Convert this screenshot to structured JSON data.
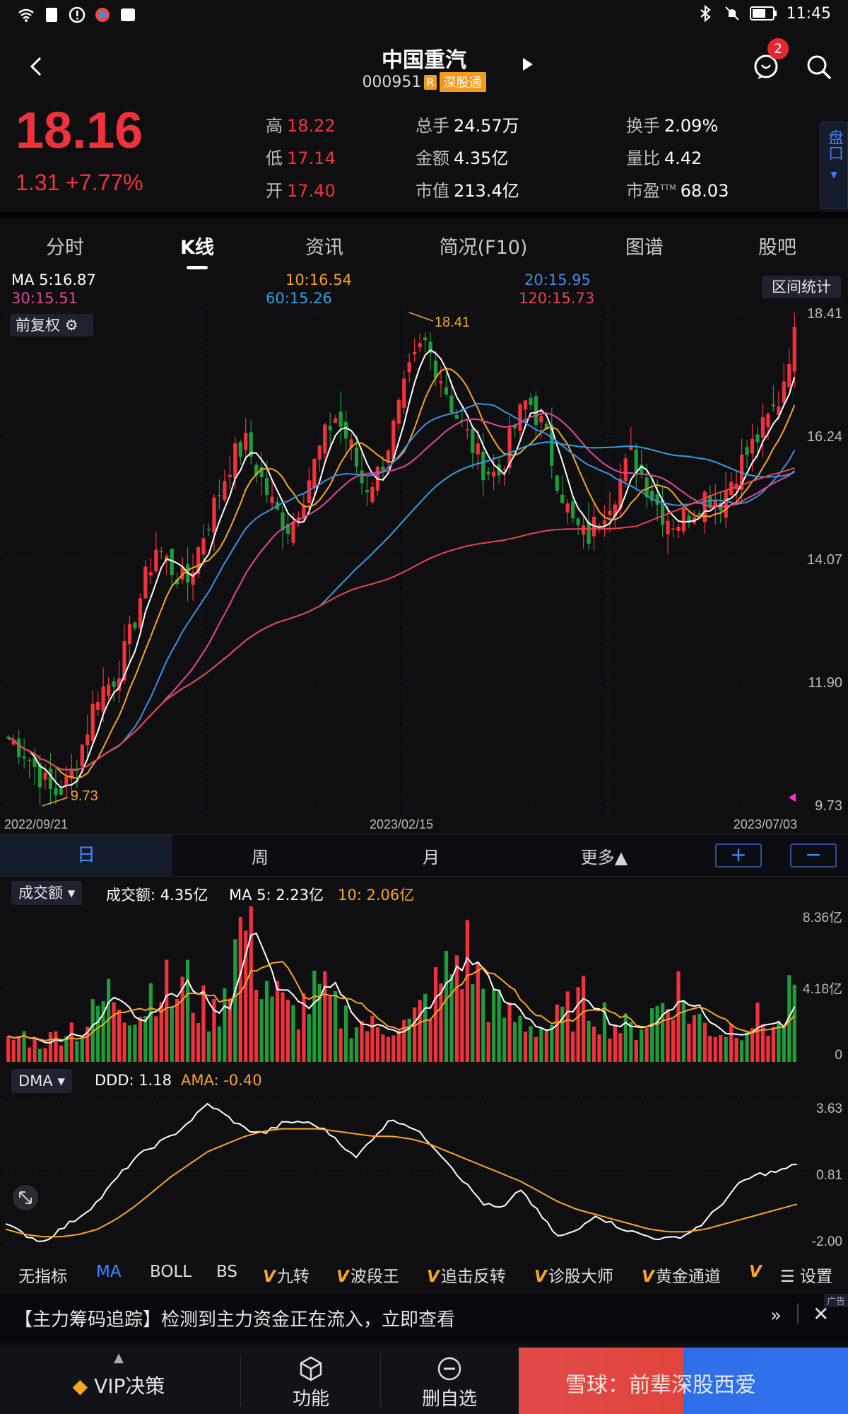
{
  "status_bar": {
    "time": "11:45"
  },
  "header": {
    "name": "中国重汽",
    "code": "000951",
    "tag_r": "R",
    "tag_market": "深股通",
    "notif_count": "2"
  },
  "quote": {
    "price": "18.16",
    "change": "1.31 +7.77%",
    "high_label": "高",
    "high": "18.22",
    "low_label": "低",
    "low": "17.14",
    "open_label": "开",
    "open": "17.40",
    "vol_label": "总手",
    "vol": "24.57万",
    "amount_label": "金额",
    "amount": "4.35亿",
    "mcap_label": "市值",
    "mcap": "213.4亿",
    "turnover_label": "换手",
    "turnover": "2.09%",
    "vol_ratio_label": "量比",
    "vol_ratio": "4.42",
    "pe_label": "市盈",
    "pe_sup": "TTM",
    "pe": "68.03",
    "pankou": "盘口"
  },
  "tabs": [
    "分时",
    "K线",
    "资讯",
    "简况(F10)",
    "图谱",
    "股吧"
  ],
  "ma_header": {
    "ma5": "MA  5:16.87",
    "ma10": "10:16.54",
    "ma20": "20:15.95",
    "ma30": "30:15.51",
    "ma60": "60:15.26",
    "ma120": "120:15.73",
    "range_stats": "区间统计",
    "adjust": "前复权"
  },
  "colors": {
    "up": "#f0323c",
    "down": "#1f9b3c",
    "ma5": "#ffffff",
    "ma10": "#f5a623",
    "ma20": "#3f8fe0",
    "ma30": "#e0479b",
    "ma60": "#2f9fe0",
    "ma120": "#e8444c",
    "accent": "#3d8bff"
  },
  "periods": {
    "day": "日",
    "week": "周",
    "month": "月",
    "more": "更多▲",
    "zoom_in": "+",
    "zoom_out": "−"
  },
  "volume_header": {
    "selector": "成交额",
    "value": "成交额: 4.35亿",
    "ma5": "MA 5: 2.23亿",
    "ma10": "10: 2.06亿"
  },
  "dma_header": {
    "selector": "DMA",
    "ddd": "DDD: 1.18",
    "ama": "AMA: -0.40"
  },
  "indicators": [
    "无指标",
    "MA",
    "BOLL",
    "BS",
    "九转",
    "波段王",
    "追击反转",
    "诊股大师",
    "黄金通道",
    "设置"
  ],
  "banner": {
    "text": "【主力筹码追踪】检测到主力资金正在流入，立即查看",
    "ad": "广告"
  },
  "bottom_bar": {
    "vip": "VIP决策",
    "func": "功能",
    "remove": "删自选",
    "watermark": "雪球：前辈深股西爱"
  },
  "chart_data": [
    {
      "type": "candlestick",
      "title": "",
      "x_start": "2022/09/21",
      "x_mid": "2023/02/15",
      "x_end": "2023/07/03",
      "x_ticks": [
        "2022/09/21",
        "2023/02/15",
        "2023/07/03"
      ],
      "y_ticks": [
        "18.41",
        "16.24",
        "14.07",
        "11.90",
        "9.73"
      ],
      "ylim": [
        9.73,
        18.41
      ],
      "max_label": "18.41",
      "min_label": "9.73",
      "close_trend": [
        10.9,
        10.7,
        10.3,
        9.9,
        10.1,
        10.8,
        11.7,
        11.9,
        12.5,
        13.5,
        14.3,
        13.9,
        13.6,
        14.4,
        15.1,
        15.8,
        16.1,
        15.5,
        14.9,
        14.6,
        15.3,
        16.0,
        16.6,
        16.1,
        15.3,
        15.6,
        16.4,
        17.3,
        17.9,
        17.4,
        16.7,
        16.2,
        15.7,
        15.5,
        16.3,
        16.9,
        16.4,
        15.5,
        14.7,
        14.4,
        14.9,
        15.3,
        15.9,
        15.4,
        14.9,
        14.7,
        14.9,
        15.2,
        15.1,
        15.6,
        16.0,
        16.4,
        16.9,
        18.16
      ]
    },
    {
      "type": "bar",
      "title": "",
      "y_ticks": [
        "8.36亿",
        "4.18亿",
        "0"
      ],
      "values": [
        1.2,
        1.6,
        1.1,
        1.4,
        2.2,
        1.8,
        3.1,
        4.2,
        3.5,
        2.9,
        5.2,
        3.8,
        4.6,
        3.2,
        2.8,
        6.1,
        8.36,
        5.4,
        3.9,
        2.7,
        3.4,
        4.1,
        3.0,
        2.6,
        2.2,
        1.9,
        2.4,
        2.1,
        3.3,
        4.4,
        5.8,
        6.4,
        4.2,
        3.1,
        2.6,
        2.3,
        2.0,
        2.4,
        3.2,
        3.6,
        2.9,
        2.2,
        1.9,
        2.5,
        3.4,
        4.6,
        2.8,
        2.2,
        1.8,
        2.1,
        2.6,
        2.3,
        2.0,
        4.35
      ],
      "ylim": [
        0,
        8.36
      ]
    },
    {
      "type": "line",
      "title": "",
      "y_ticks": [
        "3.63",
        "0.81",
        "-2.00"
      ],
      "ylim": [
        -2.0,
        3.63
      ],
      "series": [
        {
          "name": "DDD",
          "values": [
            -1.2,
            -1.6,
            -1.9,
            -1.4,
            -0.9,
            -0.3,
            0.6,
            1.4,
            1.9,
            2.3,
            2.9,
            3.6,
            3.1,
            2.6,
            2.4,
            2.8,
            2.9,
            2.7,
            2.2,
            1.4,
            2.3,
            3.0,
            2.7,
            2.1,
            1.3,
            0.4,
            -0.4,
            -0.6,
            0.2,
            -0.8,
            -1.7,
            -1.5,
            -0.8,
            -1.2,
            -1.5,
            -1.7,
            -1.8,
            -1.6,
            -1.1,
            -0.3,
            0.5,
            0.8,
            0.9,
            1.18
          ]
        },
        {
          "name": "AMA",
          "values": [
            -1.4,
            -1.6,
            -1.7,
            -1.7,
            -1.6,
            -1.4,
            -1.0,
            -0.5,
            0.1,
            0.7,
            1.2,
            1.7,
            2.0,
            2.3,
            2.5,
            2.6,
            2.6,
            2.6,
            2.5,
            2.4,
            2.3,
            2.3,
            2.2,
            2.0,
            1.7,
            1.4,
            1.1,
            0.8,
            0.5,
            0.1,
            -0.3,
            -0.6,
            -0.8,
            -1.0,
            -1.2,
            -1.4,
            -1.5,
            -1.5,
            -1.4,
            -1.2,
            -1.0,
            -0.8,
            -0.6,
            -0.4
          ]
        }
      ]
    }
  ]
}
